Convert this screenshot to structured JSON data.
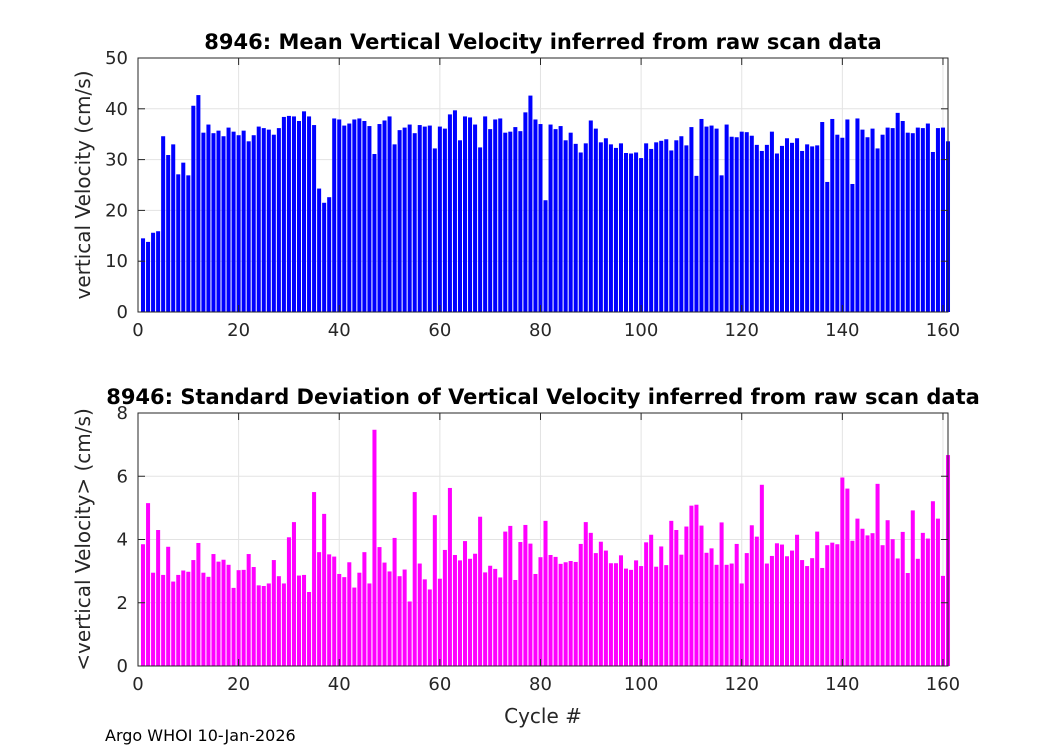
{
  "footer": "Argo WHOI 10-Jan-2026",
  "chart_data": [
    {
      "type": "bar",
      "title": "8946: Mean Vertical Velocity inferred from raw scan data",
      "xlabel": "",
      "ylabel": "vertical Velocity (cm/s)",
      "xlim": [
        0,
        161
      ],
      "ylim": [
        0,
        50
      ],
      "xticks": [
        0,
        20,
        40,
        60,
        80,
        100,
        120,
        140,
        160
      ],
      "yticks": [
        0,
        10,
        20,
        30,
        40,
        50
      ],
      "grid": true,
      "color": "#0000ff",
      "x_start": 1,
      "values": [
        14.5,
        13.8,
        15.6,
        15.9,
        34.6,
        30.9,
        33.0,
        27.1,
        29.4,
        26.9,
        40.6,
        42.7,
        35.3,
        36.9,
        35.2,
        35.7,
        34.6,
        36.3,
        35.5,
        34.8,
        35.7,
        33.6,
        34.8,
        36.5,
        36.2,
        35.9,
        34.9,
        36.2,
        38.4,
        38.6,
        38.5,
        37.6,
        39.5,
        38.5,
        36.8,
        24.3,
        21.5,
        22.6,
        38.1,
        37.9,
        36.7,
        37.1,
        37.9,
        38.1,
        37.6,
        36.6,
        31.1,
        37.0,
        37.7,
        38.5,
        33.0,
        35.8,
        36.3,
        36.9,
        35.2,
        36.8,
        36.5,
        36.7,
        32.2,
        36.5,
        36.1,
        38.9,
        39.7,
        33.8,
        38.5,
        38.3,
        36.9,
        32.4,
        38.5,
        36.0,
        37.9,
        38.1,
        35.3,
        35.5,
        36.4,
        35.6,
        39.3,
        42.6,
        37.9,
        37.0,
        22.0,
        36.9,
        36.0,
        36.6,
        33.8,
        35.3,
        33.1,
        31.4,
        33.2,
        37.7,
        36.1,
        33.4,
        34.2,
        33.0,
        32.3,
        33.2,
        31.3,
        31.2,
        31.4,
        30.3,
        33.2,
        32.1,
        33.4,
        33.7,
        34.0,
        31.8,
        33.8,
        34.6,
        32.8,
        36.4,
        26.8,
        38.0,
        36.5,
        36.7,
        36.1,
        26.9,
        36.9,
        34.5,
        34.4,
        35.5,
        35.4,
        34.7,
        32.9,
        31.7,
        32.9,
        35.5,
        31.2,
        32.7,
        34.2,
        33.3,
        34.2,
        31.7,
        33.0,
        32.6,
        32.8,
        37.4,
        25.6,
        38.0,
        34.9,
        34.3,
        37.9,
        25.2,
        38.1,
        35.9,
        34.4,
        36.1,
        32.2,
        34.9,
        36.3,
        36.2,
        39.2,
        37.6,
        35.3,
        35.2,
        36.3,
        36.2,
        37.1,
        31.5,
        36.2,
        36.3,
        33.6
      ]
    },
    {
      "type": "bar",
      "title": "8946: Standard Deviation of Vertical Velocity inferred from raw scan data",
      "xlabel": "Cycle #",
      "ylabel": "<vertical Velocity> (cm/s)",
      "xlim": [
        0,
        161
      ],
      "ylim": [
        0,
        8
      ],
      "xticks": [
        0,
        20,
        40,
        60,
        80,
        100,
        120,
        140,
        160
      ],
      "yticks": [
        0,
        2,
        4,
        6,
        8
      ],
      "grid": true,
      "color": "#ff00ff",
      "x_start": 1,
      "values": [
        3.85,
        5.15,
        2.95,
        4.3,
        2.88,
        3.77,
        2.67,
        2.88,
        3.02,
        2.98,
        3.35,
        3.89,
        2.95,
        2.82,
        3.54,
        3.3,
        3.36,
        3.2,
        2.47,
        3.03,
        3.04,
        3.54,
        3.13,
        2.55,
        2.53,
        2.61,
        3.35,
        2.84,
        2.61,
        4.07,
        4.55,
        2.86,
        2.88,
        2.34,
        5.5,
        3.6,
        4.81,
        3.53,
        3.46,
        2.91,
        2.81,
        3.28,
        2.48,
        2.95,
        3.6,
        2.61,
        7.47,
        3.76,
        3.27,
        2.99,
        4.05,
        2.84,
        3.05,
        2.04,
        5.5,
        3.24,
        2.74,
        2.42,
        4.77,
        2.76,
        3.67,
        5.63,
        3.51,
        3.34,
        3.95,
        3.39,
        3.55,
        4.72,
        2.96,
        3.17,
        3.07,
        2.8,
        4.25,
        4.43,
        2.72,
        3.92,
        4.46,
        3.87,
        2.91,
        3.44,
        4.59,
        3.51,
        3.45,
        3.23,
        3.28,
        3.32,
        3.29,
        3.86,
        4.55,
        4.21,
        3.57,
        3.93,
        3.65,
        3.25,
        3.25,
        3.5,
        3.08,
        3.04,
        3.34,
        3.16,
        3.91,
        4.15,
        3.14,
        3.78,
        3.19,
        4.59,
        4.3,
        3.52,
        4.41,
        5.07,
        5.1,
        4.44,
        3.58,
        3.72,
        3.2,
        4.54,
        3.2,
        3.24,
        3.86,
        2.61,
        3.57,
        4.45,
        4.09,
        5.73,
        3.24,
        3.48,
        3.88,
        3.84,
        3.47,
        3.65,
        4.15,
        3.35,
        3.16,
        3.41,
        4.25,
        3.1,
        3.82,
        3.9,
        3.85,
        5.96,
        5.61,
        3.96,
        4.66,
        4.34,
        4.13,
        4.2,
        5.76,
        3.82,
        4.61,
        4.01,
        3.4,
        4.24,
        2.94,
        4.92,
        3.39,
        4.21,
        4.03,
        5.21,
        4.66,
        2.85,
        6.67
      ]
    }
  ]
}
